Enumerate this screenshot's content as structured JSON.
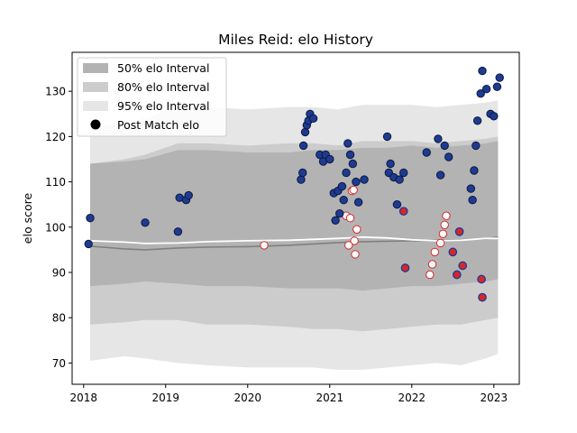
{
  "chart_data": {
    "type": "scatter",
    "title": "Miles Reid: elo History",
    "xlabel": "",
    "ylabel": "elo score",
    "xlim": [
      2017.86,
      2023.31
    ],
    "ylim": [
      65.3,
      138.6
    ],
    "x_ticks": [
      2018,
      2019,
      2020,
      2021,
      2022,
      2023
    ],
    "x_tick_labels": [
      "2018",
      "2019",
      "2020",
      "2021",
      "2022",
      "2023"
    ],
    "y_ticks": [
      70,
      80,
      90,
      100,
      110,
      120,
      130
    ],
    "y_tick_labels": [
      "70",
      "80",
      "90",
      "100",
      "110",
      "120",
      "130"
    ],
    "grid": false,
    "legend": {
      "position": "top-left",
      "entries": [
        "50% elo Interval",
        "80% elo Interval",
        "95% elo Interval",
        "Post Match elo"
      ]
    },
    "colors": {
      "band_50": "#b3b3b3",
      "band_80": "#cccccc",
      "band_95": "#e6e6e6",
      "mean_line": "#808080",
      "median_line": "#ffffff",
      "win_fill": "#1f3a93",
      "loss_point_fill": "#ffffff",
      "loss_point_edge": "#d62728",
      "loss_star_fill": "#d62728"
    },
    "interval_x": [
      2018.08,
      2018.5,
      2018.75,
      2019.15,
      2019.5,
      2020.0,
      2020.5,
      2020.8,
      2021.1,
      2021.4,
      2021.7,
      2022.0,
      2022.3,
      2022.6,
      2022.9,
      2023.05
    ],
    "series": [
      {
        "name": "95% elo Interval",
        "lower": [
          70.5,
          71.5,
          71.0,
          70.0,
          69.5,
          69.0,
          69.0,
          69.0,
          68.5,
          68.5,
          69.0,
          69.5,
          70.0,
          69.5,
          71.0,
          72.0
        ],
        "upper": [
          122.0,
          123.0,
          124.0,
          126.5,
          126.5,
          126.0,
          126.5,
          126.5,
          126.0,
          127.0,
          127.0,
          127.0,
          126.5,
          127.0,
          127.5,
          128.0
        ]
      },
      {
        "name": "80% elo Interval",
        "lower": [
          78.5,
          79.0,
          79.5,
          79.5,
          78.5,
          78.5,
          78.0,
          77.5,
          77.5,
          77.0,
          77.5,
          78.0,
          78.5,
          78.5,
          79.5,
          80.0
        ]
      },
      {
        "name": "50% elo Interval",
        "lower": [
          87.0,
          87.5,
          88.0,
          87.5,
          87.0,
          87.0,
          86.5,
          86.5,
          86.5,
          86.0,
          86.5,
          87.0,
          87.0,
          87.5,
          88.0,
          88.5
        ],
        "upper": [
          114.0,
          114.5,
          115.0,
          117.0,
          117.0,
          116.5,
          116.5,
          117.0,
          117.0,
          117.5,
          117.5,
          118.0,
          117.5,
          118.0,
          118.5,
          119.0
        ]
      },
      {
        "name": "",
        "line": "mean",
        "y": [
          95.8,
          95.2,
          95.0,
          95.4,
          95.6,
          95.7,
          96.0,
          96.3,
          96.6,
          96.8,
          96.9,
          97.0,
          97.1,
          97.2,
          97.4,
          97.8
        ]
      },
      {
        "name": "",
        "line": "median",
        "y": [
          97.0,
          96.7,
          96.4,
          96.5,
          96.8,
          97.0,
          97.1,
          97.3,
          97.5,
          97.8,
          97.6,
          97.2,
          97.0,
          97.1,
          97.5,
          97.5
        ]
      }
    ],
    "points_win": [
      [
        2018.08,
        102.0
      ],
      [
        2018.06,
        96.3
      ],
      [
        2018.75,
        101.0
      ],
      [
        2019.15,
        99.0
      ],
      [
        2019.17,
        106.5
      ],
      [
        2019.25,
        106.0
      ],
      [
        2019.28,
        107.0
      ],
      [
        2020.65,
        110.5
      ],
      [
        2020.67,
        112.0
      ],
      [
        2020.68,
        118.0
      ],
      [
        2020.7,
        121.0
      ],
      [
        2020.72,
        122.5
      ],
      [
        2020.74,
        123.5
      ],
      [
        2020.76,
        125.0
      ],
      [
        2020.8,
        124.0
      ],
      [
        2020.88,
        116.0
      ],
      [
        2020.92,
        114.5
      ],
      [
        2020.95,
        116.0
      ],
      [
        2021.0,
        115.0
      ],
      [
        2021.05,
        107.5
      ],
      [
        2021.07,
        101.5
      ],
      [
        2021.1,
        108.0
      ],
      [
        2021.12,
        103.0
      ],
      [
        2021.15,
        109.0
      ],
      [
        2021.17,
        106.0
      ],
      [
        2021.2,
        112.0
      ],
      [
        2021.22,
        118.5
      ],
      [
        2021.25,
        116.0
      ],
      [
        2021.28,
        114.0
      ],
      [
        2021.32,
        110.0
      ],
      [
        2021.35,
        105.5
      ],
      [
        2021.42,
        110.5
      ],
      [
        2021.7,
        120.0
      ],
      [
        2021.72,
        112.0
      ],
      [
        2021.74,
        114.0
      ],
      [
        2021.78,
        111.0
      ],
      [
        2021.82,
        105.0
      ],
      [
        2021.85,
        110.5
      ],
      [
        2021.9,
        112.0
      ],
      [
        2022.18,
        116.5
      ],
      [
        2022.32,
        119.5
      ],
      [
        2022.35,
        111.5
      ],
      [
        2022.4,
        118.0
      ],
      [
        2022.45,
        115.5
      ],
      [
        2022.72,
        108.5
      ],
      [
        2022.74,
        106.0
      ],
      [
        2022.76,
        112.5
      ],
      [
        2022.78,
        118.0
      ],
      [
        2022.8,
        123.5
      ],
      [
        2022.84,
        129.5
      ],
      [
        2022.86,
        134.5
      ],
      [
        2022.91,
        130.5
      ],
      [
        2022.96,
        125.0
      ],
      [
        2023.0,
        124.5
      ],
      [
        2023.04,
        131.0
      ],
      [
        2023.07,
        133.0
      ]
    ],
    "points_loss_star": [
      [
        2021.9,
        103.5
      ],
      [
        2021.92,
        91.0
      ],
      [
        2022.5,
        94.5
      ],
      [
        2022.55,
        89.5
      ],
      [
        2022.58,
        99.0
      ],
      [
        2022.62,
        91.5
      ],
      [
        2022.85,
        88.5
      ],
      [
        2022.86,
        84.5
      ]
    ],
    "points_loss": [
      [
        2020.2,
        96.0
      ],
      [
        2021.2,
        102.5
      ],
      [
        2021.23,
        96.0
      ],
      [
        2021.25,
        102.0
      ],
      [
        2021.27,
        108.0
      ],
      [
        2021.29,
        108.2
      ],
      [
        2021.3,
        97.0
      ],
      [
        2021.31,
        94.0
      ],
      [
        2021.33,
        99.5
      ],
      [
        2022.22,
        89.5
      ],
      [
        2022.25,
        91.8
      ],
      [
        2022.28,
        94.5
      ],
      [
        2022.35,
        96.5
      ],
      [
        2022.38,
        98.5
      ],
      [
        2022.4,
        100.5
      ],
      [
        2022.42,
        102.5
      ]
    ]
  }
}
